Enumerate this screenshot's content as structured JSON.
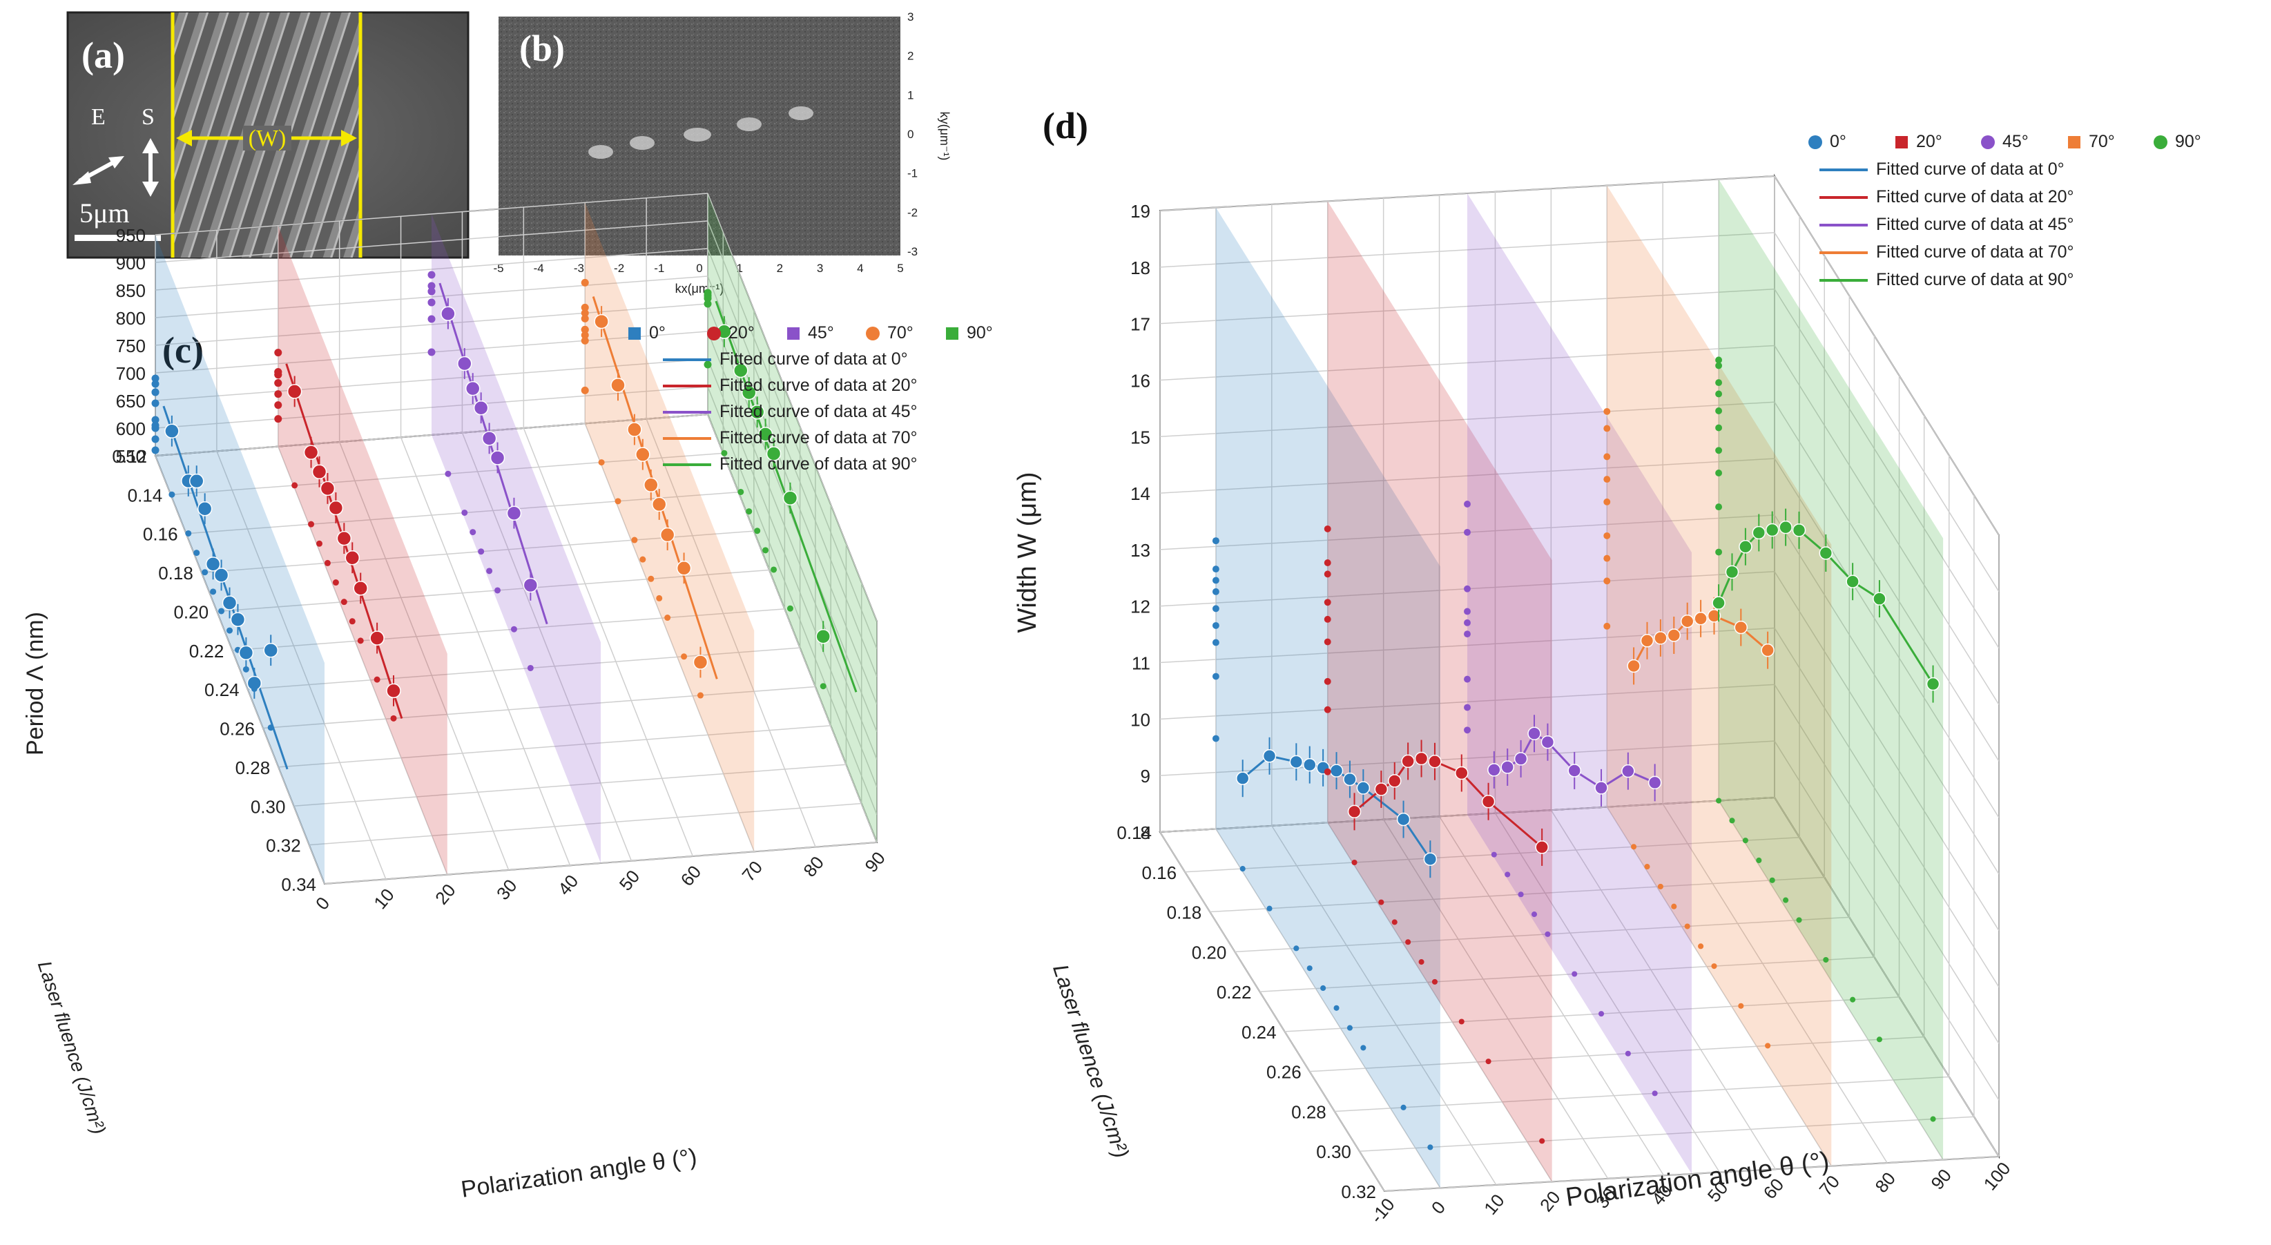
{
  "panels": {
    "a": {
      "label": "(a)",
      "e_label": "E",
      "s_label": "S",
      "width_label": "(W)",
      "scalebar_label": "5μm"
    },
    "b": {
      "label": "(b)",
      "x_ticks": [
        "-5",
        "-4",
        "-3",
        "-2",
        "-1",
        "0",
        "1",
        "2",
        "3",
        "4",
        "5"
      ],
      "y_ticks": [
        "3",
        "2",
        "1",
        "0",
        "-1",
        "-2",
        "-3"
      ],
      "xlabel": "kx(μm⁻¹)",
      "ylabel": "ky(μm⁻¹)"
    },
    "c": {
      "label": "(c)"
    },
    "d": {
      "label": "(d)"
    }
  },
  "colors": {
    "0": "#2e7fbf",
    "20": "#c9252b",
    "45": "#8a52c9",
    "70": "#ee7d36",
    "90": "#3aad3a"
  },
  "chart_data": [
    {
      "id": "c",
      "type": "scatter",
      "title": "",
      "xlabel": "Polarization angle θ (°)",
      "ylabel": "Period Λ (nm)",
      "zlabel": "Laser fluence (J/cm²)",
      "xlim": [
        0,
        90
      ],
      "ylim": [
        550,
        950
      ],
      "zlim": [
        0.12,
        0.34
      ],
      "x_ticks": [
        "0",
        "10",
        "20",
        "30",
        "40",
        "50",
        "60",
        "70",
        "80",
        "90"
      ],
      "y_ticks": [
        "550",
        "600",
        "650",
        "700",
        "750",
        "800",
        "850",
        "900",
        "950"
      ],
      "z_ticks": [
        "0.12",
        "0.14",
        "0.16",
        "0.18",
        "0.20",
        "0.22",
        "0.24",
        "0.26",
        "0.28",
        "0.30",
        "0.32",
        "0.34"
      ],
      "legend": [
        {
          "key": "0",
          "label": "0°",
          "marker": "square"
        },
        {
          "key": "20",
          "label": "20°",
          "marker": "sphere"
        },
        {
          "key": "45",
          "label": "45°",
          "marker": "square"
        },
        {
          "key": "70",
          "label": "70°",
          "marker": "sphere"
        },
        {
          "key": "90",
          "label": "90°",
          "marker": "square"
        },
        {
          "key": "0",
          "label": "Fitted curve of data at 0°",
          "marker": "line"
        },
        {
          "key": "20",
          "label": "Fitted curve of data at 20°",
          "marker": "line"
        },
        {
          "key": "45",
          "label": "Fitted curve of data at 45°",
          "marker": "line"
        },
        {
          "key": "70",
          "label": "Fitted curve of data at 70°",
          "marker": "line"
        },
        {
          "key": "90",
          "label": "Fitted curve of data at 90°",
          "marker": "line"
        }
      ],
      "series": [
        {
          "name": "0°",
          "angle": 0,
          "fluence": [
            0.14,
            0.16,
            0.17,
            0.18,
            0.19,
            0.2,
            0.21,
            0.22,
            0.23,
            0.24,
            0.26
          ],
          "period": [
            665,
            645,
            680,
            665,
            600,
            615,
            600,
            605,
            580,
            560,
            690
          ],
          "fit": [
            [
              0.13,
              675
            ],
            [
              0.28,
              545
            ]
          ]
        },
        {
          "name": "20°",
          "angle": 20,
          "fluence": [
            0.14,
            0.16,
            0.17,
            0.18,
            0.19,
            0.2,
            0.21,
            0.22,
            0.24,
            0.26
          ],
          "period": [
            720,
            680,
            680,
            685,
            685,
            665,
            665,
            645,
            625,
            600
          ],
          "fit": [
            [
              0.13,
              735
            ],
            [
              0.27,
              585
            ]
          ]
        },
        {
          "name": "45°",
          "angle": 45,
          "fluence": [
            0.14,
            0.16,
            0.17,
            0.18,
            0.19,
            0.2,
            0.22,
            0.24
          ],
          "period": [
            840,
            820,
            810,
            810,
            790,
            790,
            760,
            700
          ],
          "fit": [
            [
              0.13,
              860
            ],
            [
              0.26,
              700
            ]
          ]
        },
        {
          "name": "70°",
          "angle": 70,
          "fluence": [
            0.14,
            0.16,
            0.18,
            0.19,
            0.2,
            0.21,
            0.22,
            0.24,
            0.26
          ],
          "period": [
            805,
            760,
            750,
            740,
            720,
            720,
            700,
            710,
            610
          ],
          "fit": [
            [
              0.13,
              815
            ],
            [
              0.28,
              650
            ]
          ]
        },
        {
          "name": "90°",
          "angle": 90,
          "fluence": [
            0.14,
            0.16,
            0.17,
            0.18,
            0.19,
            0.2,
            0.22,
            0.26
          ],
          "period": [
            770,
            770,
            765,
            765,
            760,
            760,
            750,
            640
          ],
          "fit": [
            [
              0.13,
              790
            ],
            [
              0.3,
              680
            ]
          ]
        }
      ]
    },
    {
      "id": "d",
      "type": "scatter",
      "title": "",
      "xlabel": "Polarization angle θ (°)",
      "ylabel": "Width W (μm)",
      "zlabel": "Laser fluence (J/cm²)",
      "xlim": [
        -10,
        100
      ],
      "ylim": [
        8,
        19
      ],
      "zlim": [
        0.14,
        0.32
      ],
      "x_ticks": [
        "-10",
        "0",
        "10",
        "20",
        "30",
        "40",
        "50",
        "60",
        "70",
        "80",
        "90",
        "100"
      ],
      "y_ticks": [
        "8",
        "9",
        "10",
        "11",
        "12",
        "13",
        "14",
        "15",
        "16",
        "17",
        "18",
        "19"
      ],
      "z_ticks": [
        "0.14",
        "0.16",
        "0.18",
        "0.20",
        "0.22",
        "0.24",
        "0.26",
        "0.28",
        "0.30",
        "0.32"
      ],
      "legend": [
        {
          "key": "0",
          "label": "0°",
          "marker": "sphere"
        },
        {
          "key": "20",
          "label": "20°",
          "marker": "square"
        },
        {
          "key": "45",
          "label": "45°",
          "marker": "sphere"
        },
        {
          "key": "70",
          "label": "70°",
          "marker": "square"
        },
        {
          "key": "90",
          "label": "90°",
          "marker": "sphere"
        },
        {
          "key": "0",
          "label": "Fitted curve of data at 0°",
          "marker": "line"
        },
        {
          "key": "20",
          "label": "Fitted curve of data at 20°",
          "marker": "line"
        },
        {
          "key": "45",
          "label": "Fitted curve of data at 45°",
          "marker": "line"
        },
        {
          "key": "70",
          "label": "Fitted curve of data at 70°",
          "marker": "line"
        },
        {
          "key": "90",
          "label": "Fitted curve of data at 90°",
          "marker": "line"
        }
      ],
      "series": [
        {
          "name": "0°",
          "angle": 0,
          "fluence": [
            0.16,
            0.18,
            0.2,
            0.21,
            0.22,
            0.23,
            0.24,
            0.25,
            0.28,
            0.3
          ],
          "width": [
            9.6,
            10.7,
            11.3,
            11.6,
            11.9,
            12.2,
            12.4,
            12.6,
            13.1,
            13.1
          ]
        },
        {
          "name": "20°",
          "angle": 20,
          "fluence": [
            0.16,
            0.18,
            0.19,
            0.2,
            0.21,
            0.22,
            0.24,
            0.26,
            0.3
          ],
          "width": [
            8.9,
            10.0,
            10.5,
            11.2,
            11.6,
            11.9,
            12.4,
            12.6,
            13.2
          ]
        },
        {
          "name": "45°",
          "angle": 45,
          "fluence": [
            0.16,
            0.17,
            0.18,
            0.19,
            0.2,
            0.22,
            0.24,
            0.26,
            0.28
          ],
          "width": [
            9.5,
            9.9,
            10.4,
            11.2,
            11.4,
            11.6,
            12.0,
            13.0,
            13.5
          ]
        },
        {
          "name": "70°",
          "angle": 70,
          "fluence": [
            0.16,
            0.17,
            0.18,
            0.19,
            0.2,
            0.21,
            0.22,
            0.24,
            0.26
          ],
          "width": [
            11.2,
            12.0,
            12.4,
            12.8,
            13.4,
            13.8,
            14.2,
            14.7,
            15.0
          ]
        },
        {
          "name": "90°",
          "angle": 90,
          "fluence": [
            0.14,
            0.15,
            0.16,
            0.17,
            0.18,
            0.19,
            0.2,
            0.22,
            0.24,
            0.26,
            0.3
          ],
          "width": [
            11.5,
            12.4,
            13.2,
            13.8,
            14.2,
            14.6,
            14.9,
            15.2,
            15.4,
            15.8,
            15.7
          ]
        }
      ]
    }
  ]
}
